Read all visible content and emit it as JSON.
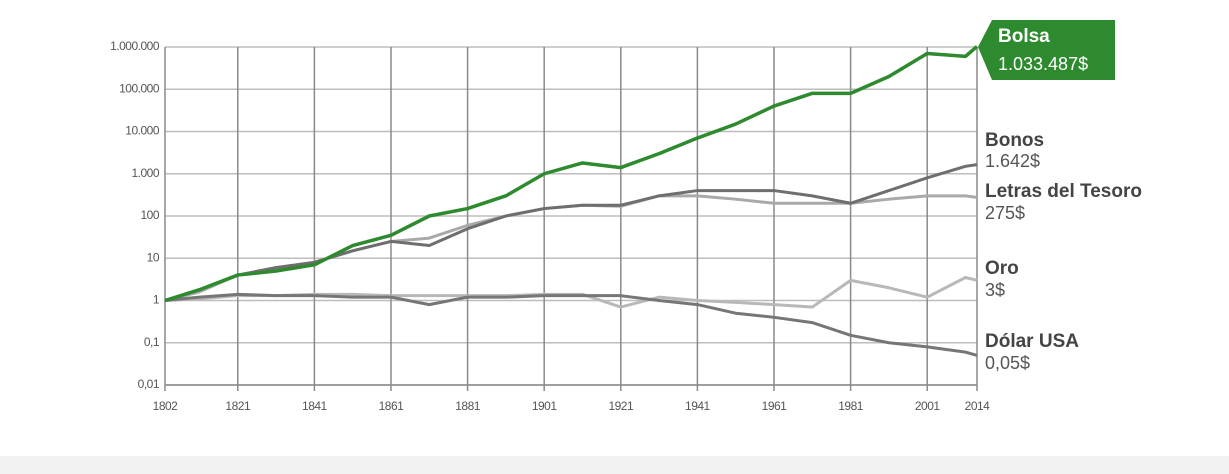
{
  "chart_data": {
    "type": "line",
    "log_scale": true,
    "grid": true,
    "x": [
      1802,
      1811,
      1821,
      1831,
      1841,
      1851,
      1861,
      1871,
      1881,
      1891,
      1901,
      1911,
      1921,
      1931,
      1941,
      1951,
      1961,
      1971,
      1981,
      1991,
      2001,
      2011,
      2014
    ],
    "xlim": [
      1802,
      2014
    ],
    "xticks": [
      1802,
      1821,
      1841,
      1861,
      1881,
      1901,
      1921,
      1941,
      1961,
      1981,
      2001,
      2014
    ],
    "ylim": [
      0.01,
      1000000
    ],
    "yticks": [
      {
        "value": 0.01,
        "label": "0,01"
      },
      {
        "value": 0.1,
        "label": "0,1"
      },
      1,
      10,
      100,
      {
        "value": 1000,
        "label": "1.000"
      },
      {
        "value": 10000,
        "label": "10.000"
      },
      {
        "value": 100000,
        "label": "100.000"
      },
      {
        "value": 1000000,
        "label": "1.000.000"
      }
    ],
    "series": [
      {
        "name": "Bolsa",
        "color": "#2e8a2e",
        "values": [
          1,
          1.8,
          4,
          5,
          7,
          20,
          35,
          100,
          150,
          300,
          1000,
          1800,
          1400,
          3000,
          7000,
          15000,
          40000,
          80000,
          80000,
          200000,
          700000,
          600000,
          1033487
        ],
        "value_labels": [
          null,
          null,
          null,
          null,
          null,
          null,
          null,
          null,
          null,
          null,
          null,
          null,
          null,
          null,
          null,
          null,
          null,
          null,
          null,
          null,
          null,
          null,
          "1.033.487$"
        ]
      },
      {
        "name": "Bonos",
        "color": "#6e6e6e",
        "values": [
          1,
          1.8,
          4,
          6,
          8,
          15,
          25,
          20,
          50,
          100,
          150,
          180,
          180,
          300,
          400,
          400,
          400,
          300,
          200,
          400,
          800,
          1500,
          1642
        ],
        "value_labels": [
          null,
          null,
          null,
          null,
          null,
          null,
          null,
          null,
          null,
          null,
          null,
          null,
          null,
          null,
          null,
          null,
          null,
          null,
          null,
          null,
          null,
          null,
          "1.642$"
        ]
      },
      {
        "name": "Letras del Tesoro",
        "color": "#a9a9a9",
        "values": [
          1,
          1.6,
          4,
          6,
          8,
          15,
          25,
          30,
          60,
          100,
          150,
          180,
          170,
          300,
          300,
          250,
          200,
          200,
          200,
          250,
          300,
          300,
          275
        ],
        "value_labels": [
          null,
          null,
          null,
          null,
          null,
          null,
          null,
          null,
          null,
          null,
          null,
          null,
          null,
          null,
          null,
          null,
          null,
          null,
          null,
          null,
          null,
          null,
          "275$"
        ]
      },
      {
        "name": "Oro",
        "color": "#b8b8b8",
        "values": [
          1,
          1.1,
          1.3,
          1.3,
          1.4,
          1.4,
          1.3,
          1.3,
          1.3,
          1.3,
          1.4,
          1.4,
          0.7,
          1.2,
          1.0,
          0.9,
          0.8,
          0.7,
          3,
          2,
          1.2,
          3.5,
          3
        ],
        "value_labels": [
          null,
          null,
          null,
          null,
          null,
          null,
          null,
          null,
          null,
          null,
          null,
          null,
          null,
          null,
          null,
          null,
          null,
          null,
          null,
          null,
          null,
          null,
          "3$"
        ]
      },
      {
        "name": "Dólar USA",
        "color": "#767676",
        "values": [
          1,
          1.2,
          1.4,
          1.3,
          1.3,
          1.2,
          1.2,
          0.8,
          1.2,
          1.2,
          1.3,
          1.3,
          1.3,
          1.0,
          0.8,
          0.5,
          0.4,
          0.3,
          0.15,
          0.1,
          0.08,
          0.06,
          0.05
        ],
        "value_labels": [
          null,
          null,
          null,
          null,
          null,
          null,
          null,
          null,
          null,
          null,
          null,
          null,
          null,
          null,
          null,
          null,
          null,
          null,
          null,
          null,
          null,
          null,
          "0,05$"
        ]
      }
    ]
  }
}
